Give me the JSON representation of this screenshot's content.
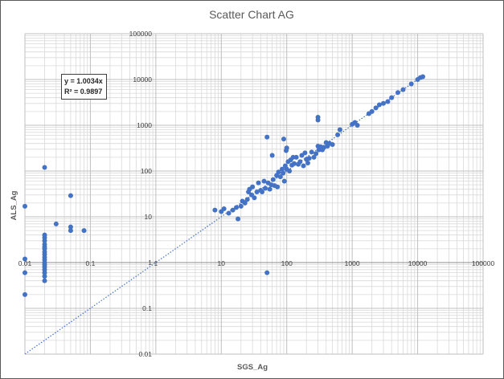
{
  "chart_data": {
    "type": "scatter",
    "title": "Scatter Chart  AG",
    "xlabel": "SGS_Ag",
    "ylabel": "ALS_Ag",
    "x_scale": "log",
    "y_scale": "log",
    "xlim": [
      0.01,
      100000
    ],
    "ylim": [
      0.01,
      100000
    ],
    "x_tick_labels": [
      "0.01",
      "0.1",
      "1",
      "10",
      "100",
      "1000",
      "10000",
      "100000"
    ],
    "y_tick_labels": [
      "0.01",
      "0.1",
      "1",
      "10",
      "100",
      "1000",
      "10000",
      "100000"
    ],
    "grid": "major and minor",
    "marker_color": "#4472C4",
    "trendline": {
      "type": "linear",
      "style": "dotted",
      "equation": "y = 1.0034x",
      "r_squared": "R² = 0.9897",
      "slope": 1.0034,
      "x_range": [
        0.01,
        12000
      ]
    },
    "points": [
      [
        0.01,
        17
      ],
      [
        0.01,
        1.2
      ],
      [
        0.01,
        0.6
      ],
      [
        0.01,
        0.2
      ],
      [
        0.02,
        120
      ],
      [
        0.02,
        4
      ],
      [
        0.02,
        3.5
      ],
      [
        0.02,
        3
      ],
      [
        0.02,
        2.5
      ],
      [
        0.02,
        2.2
      ],
      [
        0.02,
        2
      ],
      [
        0.02,
        1.7
      ],
      [
        0.02,
        1.5
      ],
      [
        0.02,
        1.3
      ],
      [
        0.02,
        1.15
      ],
      [
        0.02,
        1
      ],
      [
        0.02,
        0.9
      ],
      [
        0.02,
        0.8
      ],
      [
        0.02,
        0.7
      ],
      [
        0.02,
        0.6
      ],
      [
        0.02,
        0.5
      ],
      [
        0.02,
        0.4
      ],
      [
        0.03,
        7
      ],
      [
        0.05,
        29
      ],
      [
        0.05,
        6
      ],
      [
        0.05,
        5
      ],
      [
        0.08,
        5
      ],
      [
        8,
        14
      ],
      [
        10,
        13
      ],
      [
        11,
        15
      ],
      [
        13,
        12
      ],
      [
        15,
        14
      ],
      [
        17,
        16
      ],
      [
        18,
        9
      ],
      [
        20,
        17
      ],
      [
        21,
        22
      ],
      [
        23,
        20
      ],
      [
        25,
        24
      ],
      [
        26,
        35
      ],
      [
        27,
        40
      ],
      [
        29,
        30
      ],
      [
        30,
        45
      ],
      [
        32,
        26
      ],
      [
        35,
        35
      ],
      [
        37,
        55
      ],
      [
        40,
        38
      ],
      [
        42,
        35
      ],
      [
        45,
        60
      ],
      [
        47,
        42
      ],
      [
        50,
        550
      ],
      [
        50,
        0.6
      ],
      [
        52,
        55
      ],
      [
        55,
        40
      ],
      [
        58,
        50
      ],
      [
        60,
        220
      ],
      [
        62,
        65
      ],
      [
        65,
        48
      ],
      [
        70,
        80
      ],
      [
        72,
        45
      ],
      [
        75,
        95
      ],
      [
        80,
        75
      ],
      [
        85,
        110
      ],
      [
        88,
        90
      ],
      [
        90,
        500
      ],
      [
        92,
        60
      ],
      [
        95,
        130
      ],
      [
        98,
        280
      ],
      [
        100,
        320
      ],
      [
        100,
        110
      ],
      [
        105,
        160
      ],
      [
        110,
        100
      ],
      [
        115,
        175
      ],
      [
        120,
        135
      ],
      [
        125,
        200
      ],
      [
        130,
        145
      ],
      [
        140,
        200
      ],
      [
        150,
        140
      ],
      [
        160,
        160
      ],
      [
        170,
        220
      ],
      [
        180,
        130
      ],
      [
        190,
        250
      ],
      [
        200,
        180
      ],
      [
        210,
        150
      ],
      [
        220,
        190
      ],
      [
        240,
        260
      ],
      [
        260,
        200
      ],
      [
        280,
        240
      ],
      [
        300,
        350
      ],
      [
        300,
        1500
      ],
      [
        300,
        1300
      ],
      [
        310,
        290
      ],
      [
        320,
        300
      ],
      [
        330,
        340
      ],
      [
        350,
        290
      ],
      [
        370,
        330
      ],
      [
        400,
        420
      ],
      [
        420,
        350
      ],
      [
        450,
        400
      ],
      [
        500,
        380
      ],
      [
        600,
        620
      ],
      [
        650,
        800
      ],
      [
        1000,
        1050
      ],
      [
        1100,
        1150
      ],
      [
        1200,
        1000
      ],
      [
        1800,
        1800
      ],
      [
        2000,
        2000
      ],
      [
        2300,
        2400
      ],
      [
        2600,
        2800
      ],
      [
        3000,
        3000
      ],
      [
        3500,
        3300
      ],
      [
        4000,
        4000
      ],
      [
        5000,
        5200
      ],
      [
        6000,
        6000
      ],
      [
        8000,
        8000
      ],
      [
        10000,
        10000
      ],
      [
        11000,
        11000
      ],
      [
        12000,
        11500
      ]
    ]
  }
}
